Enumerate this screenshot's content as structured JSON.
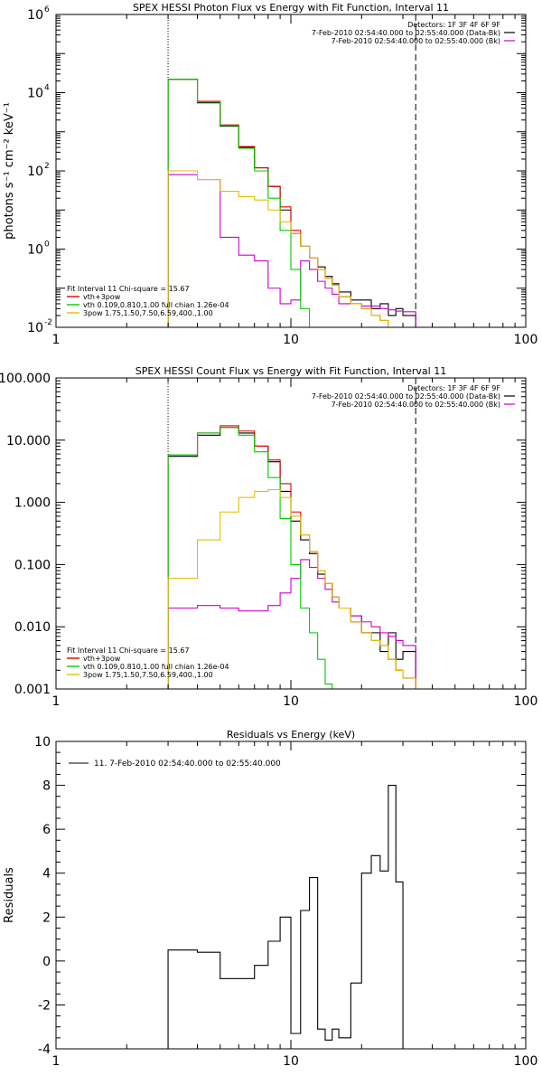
{
  "chart_data": [
    {
      "type": "line",
      "title": "SPEX HESSI Photon Flux vs Energy with Fit Function, Interval 11",
      "xlabel": "",
      "ylabel": "photons s⁻¹ cm⁻² keV⁻¹",
      "xscale": "log",
      "yscale": "log",
      "xlim": [
        1,
        100
      ],
      "ylim": [
        0.01,
        1000000
      ],
      "xticks": [
        {
          "v": 1,
          "label": "1"
        },
        {
          "v": 10,
          "label": "10"
        },
        {
          "v": 100,
          "label": "100"
        }
      ],
      "yticks": [
        {
          "v": 0.01,
          "base": "10",
          "exp": "-2"
        },
        {
          "v": 1,
          "base": "10",
          "exp": "0"
        },
        {
          "v": 100,
          "base": "10",
          "exp": "2"
        },
        {
          "v": 10000,
          "base": "10",
          "exp": "4"
        },
        {
          "v": 1000000,
          "base": "10",
          "exp": "6"
        }
      ],
      "vlines": [
        {
          "x": 3,
          "style": "dotted",
          "color": "#000000"
        },
        {
          "x": 34,
          "style": "dashed",
          "color": "#000000"
        }
      ],
      "header_lines": [
        "Detectors: 1F 3F 4F 6F 9F",
        "7-Feb-2010 02:54:40.000 to 02:55:40.000 (Data-Bk)",
        "7-Feb-2010 02:54:40.000 to 02:55:40.000 (Bk)"
      ],
      "fit_header": "Fit Interval 11    Chi-square = 15.67",
      "fit_legend": [
        {
          "name": "vth+3pow",
          "color": "#e00000"
        },
        {
          "name": "vth 0.109,0.810,1.00  full chian 1.26e-04",
          "color": "#00cc00"
        },
        {
          "name": "3pow 1.75,1.50,7.50,6.59,400.,1.00",
          "color": "#e0c000"
        }
      ],
      "bin_edges": [
        3,
        4,
        5,
        6,
        7,
        8,
        9,
        10,
        11,
        12,
        13,
        14,
        15,
        16,
        18,
        20,
        22,
        24,
        26,
        28,
        30,
        34
      ],
      "series": [
        {
          "label": "Data-Bk",
          "color": "#000000",
          "values": [
            22000,
            5500,
            1400,
            400,
            120,
            40,
            10,
            2.5,
            1.2,
            0.6,
            0.35,
            0.2,
            0.13,
            0.08,
            0.05,
            0.05,
            0.03,
            0.04,
            0.02,
            0.03,
            0.02
          ]
        },
        {
          "label": "Bk",
          "color": "#cc00cc",
          "values": [
            80,
            60,
            2,
            0.7,
            0.5,
            0.1,
            0.04,
            0.05,
            0.5,
            0.3,
            0.15,
            0.1,
            0.07,
            0.04,
            0.04,
            0.035,
            0.035,
            0.03,
            0.028,
            0.026,
            0.025
          ]
        },
        {
          "label": "vth+3pow",
          "color": "#e00000",
          "values": [
            22000,
            6000,
            1500,
            420,
            120,
            40,
            12,
            3,
            1.2,
            0.6,
            0.3,
            0.18,
            0.12,
            0.06,
            0.04,
            0.03,
            0.02,
            0.015,
            0.01,
            0.01,
            0.01
          ]
        },
        {
          "label": "vth",
          "color": "#00cc00",
          "values": [
            22000,
            5800,
            1450,
            380,
            100,
            20,
            3,
            0.3,
            0.03,
            0.003
          ]
        },
        {
          "label": "3pow",
          "color": "#e0c000",
          "values": [
            100,
            60,
            30,
            22,
            18,
            10,
            5,
            2.5,
            1.2,
            0.6,
            0.3,
            0.18,
            0.12,
            0.06,
            0.04,
            0.03,
            0.02,
            0.015,
            0.01,
            0.008,
            0.006
          ]
        }
      ]
    },
    {
      "type": "line",
      "title": "SPEX HESSI Count Flux vs Energy with Fit Function, Interval 11",
      "xlabel": "",
      "ylabel": "",
      "xscale": "log",
      "yscale": "log",
      "xlim": [
        1,
        100
      ],
      "ylim": [
        0.001,
        100
      ],
      "xticks": [
        {
          "v": 1,
          "label": "1"
        },
        {
          "v": 10,
          "label": "10"
        },
        {
          "v": 100,
          "label": "100"
        }
      ],
      "yticks": [
        {
          "v": 0.001,
          "label": "0.001"
        },
        {
          "v": 0.01,
          "label": "0.010"
        },
        {
          "v": 0.1,
          "label": "0.100"
        },
        {
          "v": 1,
          "label": "1.000"
        },
        {
          "v": 10,
          "label": "10.000"
        },
        {
          "v": 100,
          "label": "100.000"
        }
      ],
      "vlines": [
        {
          "x": 3,
          "style": "dotted",
          "color": "#000000"
        },
        {
          "x": 34,
          "style": "dashed",
          "color": "#000000"
        }
      ],
      "header_lines": [
        "Detectors: 1F 3F 4F 6F 9F",
        "7-Feb-2010 02:54:40.000 to 02:55:40.000 (Data-Bk)",
        "7-Feb-2010 02:54:40.000 to 02:55:40.000 (Bk)"
      ],
      "fit_header": "Fit Interval 11    Chi-square = 15.67",
      "fit_legend": [
        {
          "name": "vth+3pow",
          "color": "#e00000"
        },
        {
          "name": "vth 0.109,0.810,1.00  full chian 1.26e-04",
          "color": "#00cc00"
        },
        {
          "name": "3pow 1.75,1.50,7.50,6.59,400.,1.00",
          "color": "#e0c000"
        }
      ],
      "bin_edges": [
        3,
        4,
        5,
        6,
        7,
        8,
        9,
        10,
        11,
        12,
        13,
        14,
        15,
        16,
        18,
        20,
        22,
        24,
        26,
        28,
        30,
        34
      ],
      "series": [
        {
          "label": "Data-Bk",
          "color": "#000000",
          "values": [
            5.5,
            12,
            16,
            13,
            8,
            4.5,
            1.5,
            0.5,
            0.25,
            0.15,
            0.07,
            0.05,
            0.03,
            0.02,
            0.015,
            0.008,
            0.008,
            0.004,
            0.008,
            0.003,
            0.004
          ]
        },
        {
          "label": "Bk",
          "color": "#cc00cc",
          "values": [
            0.02,
            0.022,
            0.02,
            0.018,
            0.018,
            0.022,
            0.035,
            0.06,
            0.12,
            0.09,
            0.06,
            0.04,
            0.025,
            0.02,
            0.015,
            0.012,
            0.01,
            0.008,
            0.007,
            0.006,
            0.005
          ]
        },
        {
          "label": "vth+3pow",
          "color": "#e00000",
          "values": [
            5.8,
            13,
            17,
            14,
            8,
            4.8,
            2,
            0.7,
            0.3,
            0.16,
            0.08,
            0.05,
            0.03,
            0.02,
            0.012,
            0.008,
            0.006,
            0.005,
            0.003,
            0.002,
            0.0015
          ]
        },
        {
          "label": "vth",
          "color": "#00cc00",
          "values": [
            5.8,
            13,
            16,
            12,
            6.5,
            2.5,
            0.55,
            0.1,
            0.02,
            0.008,
            0.003,
            0.0012
          ]
        },
        {
          "label": "3pow",
          "color": "#e0c000",
          "values": [
            0.06,
            0.25,
            0.7,
            1.2,
            1.5,
            1.6,
            1.2,
            0.6,
            0.3,
            0.16,
            0.08,
            0.05,
            0.03,
            0.02,
            0.012,
            0.008,
            0.006,
            0.005,
            0.003,
            0.002,
            0.0015
          ]
        }
      ]
    },
    {
      "type": "line",
      "title": "Residuals vs Energy (keV)",
      "xlabel": "",
      "ylabel": "Residuals",
      "xscale": "log",
      "yscale": "linear",
      "xlim": [
        1,
        100
      ],
      "ylim": [
        -4,
        10
      ],
      "xticks": [
        {
          "v": 1,
          "label": "1"
        },
        {
          "v": 10,
          "label": "10"
        },
        {
          "v": 100,
          "label": "100"
        }
      ],
      "yticks": [
        {
          "v": -4,
          "label": "-4"
        },
        {
          "v": -2,
          "label": "-2"
        },
        {
          "v": 0,
          "label": "0"
        },
        {
          "v": 2,
          "label": "2"
        },
        {
          "v": 4,
          "label": "4"
        },
        {
          "v": 6,
          "label": "6"
        },
        {
          "v": 8,
          "label": "8"
        },
        {
          "v": 10,
          "label": "10"
        }
      ],
      "legend": "11.  7-Feb-2010 02:54:40.000 to 02:55:40.000",
      "bin_edges": [
        3,
        4,
        5,
        6,
        7,
        8,
        9,
        10,
        11,
        12,
        13,
        14,
        15,
        16,
        18,
        20,
        22,
        24,
        26,
        28,
        30,
        34
      ],
      "series": [
        {
          "label": "residuals",
          "color": "#000000",
          "values": [
            0.5,
            0.4,
            -0.8,
            -0.8,
            -0.2,
            0.9,
            2,
            -3.3,
            2.3,
            3.8,
            -3.1,
            -3.6,
            -3.1,
            -3.5,
            -1,
            4,
            4.8,
            4.1,
            8,
            3.6,
            -4
          ]
        }
      ]
    }
  ]
}
